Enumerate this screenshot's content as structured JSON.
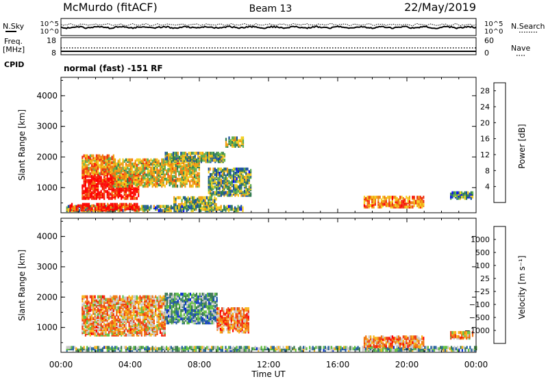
{
  "header": {
    "title": "McMurdo (fitACF)",
    "beam": "Beam 13",
    "date": "22/May/2019"
  },
  "noise_panel": {
    "left_label": "N.Sky",
    "right_label": "N.Search",
    "ticks": [
      "10^5",
      "10^0"
    ]
  },
  "freq_panel": {
    "left_label_1": "Freq.",
    "left_label_2": "[MHz]",
    "left_ticks": [
      "18",
      "8"
    ],
    "right_label": "Nave",
    "right_ticks": [
      "60",
      "0"
    ],
    "cpid_label": "CPID",
    "cpid_text": "normal (fast) -151 RF"
  },
  "colors": {
    "power_scale": [
      "#0000ff",
      "#1a4fa0",
      "#2e7a50",
      "#5fae4f",
      "#f5cf1f",
      "#f0a012",
      "#f07a10",
      "#ee3010",
      "#ff0000"
    ],
    "velocity_scale": [
      "#0a2fd0",
      "#2060a0",
      "#3a7a50",
      "#60c040",
      "#c8c8c8",
      "#f8b418",
      "#f07810",
      "#ee3a10",
      "#ff0000"
    ]
  },
  "chart_data": [
    {
      "type": "heatmap",
      "name": "power",
      "ylabel": "Slant Range [km]",
      "xlabel": "",
      "x_ticks": [
        "00:00",
        "04:00",
        "08:00",
        "12:00",
        "16:00",
        "20:00",
        "00:00"
      ],
      "y_ticks": [
        1000,
        2000,
        3000,
        4000
      ],
      "ylim": [
        180,
        4600
      ],
      "xlim_hours": [
        0,
        24
      ],
      "colorbar": {
        "label": "Power [dB]",
        "ticks": [
          4,
          8,
          12,
          16,
          20,
          24,
          28
        ],
        "range": [
          0,
          30
        ]
      },
      "echo_regions": [
        {
          "t0": 0.3,
          "t1": 10.5,
          "r0": 200,
          "r1": 360,
          "level": 0.35
        },
        {
          "t0": 0.5,
          "t1": 4.5,
          "r0": 220,
          "r1": 420,
          "level": 0.9
        },
        {
          "t0": 1.2,
          "t1": 4.5,
          "r0": 600,
          "r1": 1400,
          "level": 0.95
        },
        {
          "t0": 1.2,
          "t1": 3.0,
          "r0": 1400,
          "r1": 2000,
          "level": 0.65
        },
        {
          "t0": 3.0,
          "t1": 8.0,
          "r0": 1000,
          "r1": 1900,
          "level": 0.55
        },
        {
          "t0": 6.0,
          "t1": 9.5,
          "r0": 1800,
          "r1": 2100,
          "level": 0.4
        },
        {
          "t0": 8.5,
          "t1": 11.0,
          "r0": 700,
          "r1": 1600,
          "level": 0.35
        },
        {
          "t0": 6.5,
          "t1": 9.0,
          "r0": 350,
          "r1": 650,
          "level": 0.4
        },
        {
          "t0": 9.5,
          "t1": 10.5,
          "r0": 2300,
          "r1": 2600,
          "level": 0.45
        },
        {
          "t0": 17.5,
          "t1": 21.0,
          "r0": 320,
          "r1": 650,
          "level": 0.7
        },
        {
          "t0": 22.5,
          "t1": 23.8,
          "r0": 600,
          "r1": 800,
          "level": 0.3
        }
      ]
    },
    {
      "type": "heatmap",
      "name": "velocity",
      "ylabel": "Slant Range [km]",
      "xlabel": "Time UT",
      "x_ticks": [
        "00:00",
        "04:00",
        "08:00",
        "12:00",
        "16:00",
        "20:00",
        "00:00"
      ],
      "y_ticks": [
        1000,
        2000,
        3000,
        4000
      ],
      "ylim": [
        180,
        4600
      ],
      "xlim_hours": [
        0,
        24
      ],
      "colorbar": {
        "label": "Velocity [m s⁻¹]",
        "ticks": [
          "1000",
          "500",
          "100",
          "25",
          "−25",
          "−100",
          "−500",
          "−1000"
        ]
      },
      "echo_regions": [
        {
          "t0": 0.3,
          "t1": 24.0,
          "r0": 200,
          "r1": 330,
          "level": 0.35
        },
        {
          "t0": 1.2,
          "t1": 6.0,
          "r0": 700,
          "r1": 2000,
          "level": 0.65
        },
        {
          "t0": 6.0,
          "t1": 9.0,
          "r0": 1100,
          "r1": 2050,
          "level": 0.3
        },
        {
          "t0": 9.0,
          "t1": 10.8,
          "r0": 800,
          "r1": 1600,
          "level": 0.7
        },
        {
          "t0": 17.5,
          "t1": 21.0,
          "r0": 320,
          "r1": 650,
          "level": 0.7
        },
        {
          "t0": 22.5,
          "t1": 23.8,
          "r0": 600,
          "r1": 800,
          "level": 0.65
        }
      ]
    }
  ]
}
